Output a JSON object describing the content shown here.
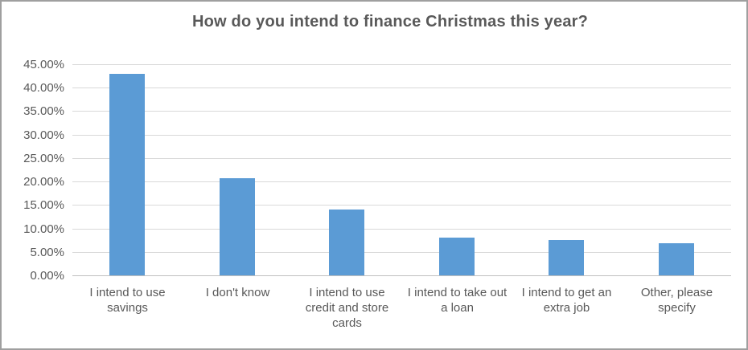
{
  "chart_data": {
    "type": "bar",
    "title": "How do you intend to finance Christmas this year?",
    "categories": [
      "I intend to use savings",
      "I don't know",
      "I intend to use credit and store cards",
      "I intend to take out a loan",
      "I intend to get an extra job",
      "Other, please specify"
    ],
    "values": [
      42.9,
      20.7,
      14.0,
      8.0,
      7.5,
      6.9
    ],
    "values_display": [
      "42.90%",
      "20.70%",
      "14.00%",
      "8.00%",
      "7.50%",
      "6.90%"
    ],
    "xlabel": "",
    "ylabel": "",
    "ylim": [
      0,
      45
    ],
    "y_tick_step": 5,
    "y_tick_labels": [
      "0.00%",
      "5.00%",
      "10.00%",
      "15.00%",
      "20.00%",
      "25.00%",
      "30.00%",
      "35.00%",
      "40.00%",
      "45.00%"
    ],
    "grid": "horizontal-only",
    "legend": "none",
    "colors": {
      "bar": "#5b9bd5",
      "text": "#595959",
      "gridline": "#d9d9d9",
      "axis_line": "#bfbfbf",
      "background": "#ffffff",
      "frame_border": "#9f9f9f"
    }
  }
}
